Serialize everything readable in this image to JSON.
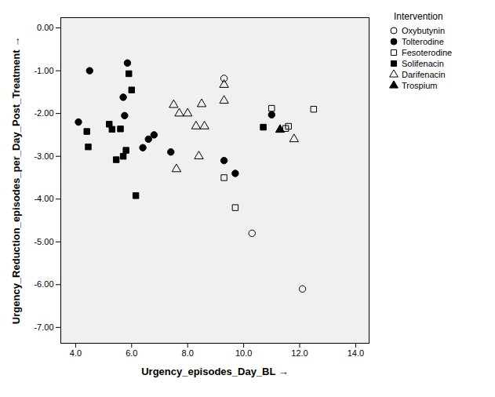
{
  "chart_data": {
    "type": "scatter",
    "x_label": "Urgency_episodes_Day_BL",
    "y_label": "Urgency_Reduction_episodes_per_Day_Post_Treatment",
    "legend_title": "Intervention",
    "legend": "right",
    "grid": false,
    "xlim": [
      3.47,
      14.48
    ],
    "ylim": [
      -7.37,
      0.24
    ],
    "xticks": [
      {
        "value": 4,
        "label": "4.0"
      },
      {
        "value": 6,
        "label": "6.0"
      },
      {
        "value": 8,
        "label": "8.0"
      },
      {
        "value": 10,
        "label": "10.0"
      },
      {
        "value": 12,
        "label": "12.0"
      },
      {
        "value": 14,
        "label": "14.0"
      }
    ],
    "yticks": [
      {
        "value": 0,
        "label": "0.00"
      },
      {
        "value": -1,
        "label": "-1.00"
      },
      {
        "value": -2,
        "label": "-2.00"
      },
      {
        "value": -3,
        "label": "-3.00"
      },
      {
        "value": -4,
        "label": "-4.00"
      },
      {
        "value": -5,
        "label": "-5.00"
      },
      {
        "value": -6,
        "label": "-6.00"
      },
      {
        "value": -7,
        "label": "-7.00"
      }
    ],
    "series": [
      {
        "name": "Oxybutynin",
        "color": "#000000",
        "marker": "circle_open",
        "values": [
          [
            9.3,
            -1.18
          ],
          [
            10.3,
            -4.8
          ],
          [
            12.1,
            -6.1
          ]
        ]
      },
      {
        "name": "Tolterodine",
        "color": "#000000",
        "marker": "circle_filled",
        "values": [
          [
            4.1,
            -2.2
          ],
          [
            4.5,
            -1.0
          ],
          [
            5.85,
            -0.82
          ],
          [
            5.7,
            -1.62
          ],
          [
            5.75,
            -2.05
          ],
          [
            6.8,
            -2.5
          ],
          [
            6.6,
            -2.6
          ],
          [
            6.4,
            -2.8
          ],
          [
            7.4,
            -2.9
          ],
          [
            9.3,
            -3.1
          ],
          [
            9.7,
            -3.4
          ],
          [
            11.0,
            -2.03
          ]
        ]
      },
      {
        "name": "Fesoterodine",
        "color": "#000000",
        "marker": "square_open",
        "values": [
          [
            9.3,
            -3.5
          ],
          [
            9.7,
            -4.2
          ],
          [
            11.0,
            -1.88
          ],
          [
            11.5,
            -2.35
          ],
          [
            11.6,
            -2.3
          ],
          [
            12.5,
            -1.9
          ]
        ]
      },
      {
        "name": "Solifenacin",
        "color": "#000000",
        "marker": "square_filled",
        "values": [
          [
            4.4,
            -2.42
          ],
          [
            4.45,
            -2.78
          ],
          [
            5.2,
            -2.25
          ],
          [
            5.3,
            -2.37
          ],
          [
            5.45,
            -3.08
          ],
          [
            5.6,
            -2.36
          ],
          [
            5.7,
            -3.0
          ],
          [
            5.8,
            -2.86
          ],
          [
            5.9,
            -1.07
          ],
          [
            6.0,
            -1.45
          ],
          [
            6.15,
            -3.92
          ],
          [
            10.7,
            -2.32
          ]
        ]
      },
      {
        "name": "Darifenacin",
        "color": "#000000",
        "marker": "triangle_open",
        "values": [
          [
            7.5,
            -1.8
          ],
          [
            7.6,
            -3.3
          ],
          [
            7.7,
            -2.0
          ],
          [
            8.0,
            -2.0
          ],
          [
            8.3,
            -2.3
          ],
          [
            8.4,
            -3.0
          ],
          [
            8.5,
            -1.78
          ],
          [
            8.6,
            -2.3
          ],
          [
            9.3,
            -1.33
          ],
          [
            9.3,
            -1.7
          ],
          [
            11.8,
            -2.6
          ]
        ]
      },
      {
        "name": "Trospium",
        "color": "#000000",
        "marker": "triangle_filled",
        "values": [
          [
            11.3,
            -2.38
          ]
        ]
      }
    ]
  }
}
